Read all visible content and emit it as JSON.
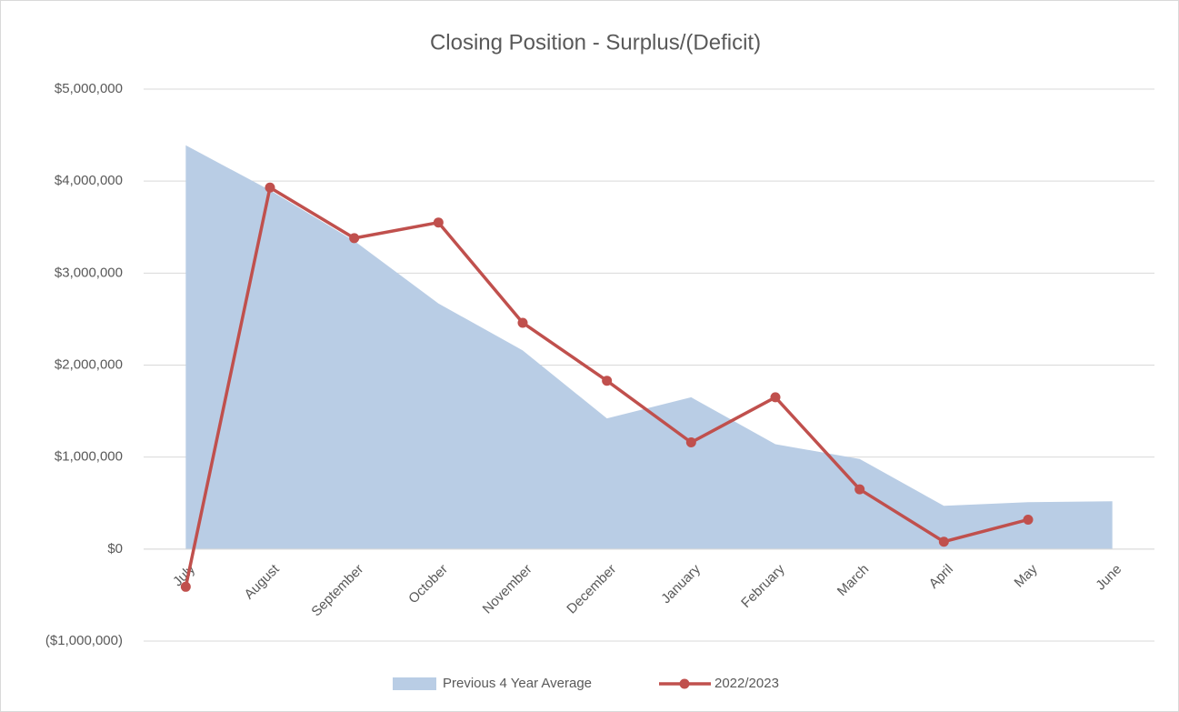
{
  "chart_data": {
    "type": "area_line",
    "title": "Closing Position - Surplus/(Deficit)",
    "categories": [
      "July",
      "August",
      "September",
      "October",
      "November",
      "December",
      "January",
      "February",
      "March",
      "April",
      "May",
      "June"
    ],
    "series": [
      {
        "name": "Previous 4 Year Average",
        "type": "area",
        "color": "#b9cde5",
        "values": [
          4390000,
          3900000,
          3350000,
          2670000,
          2160000,
          1420000,
          1650000,
          1140000,
          980000,
          470000,
          510000,
          520000
        ]
      },
      {
        "name": "2022/2023",
        "type": "line",
        "color": "#c0504d",
        "values": [
          -410000,
          3930000,
          3380000,
          3550000,
          2460000,
          1830000,
          1160000,
          1650000,
          650000,
          80000,
          320000,
          null
        ]
      }
    ],
    "ylim": [
      -1000000,
      5000000
    ],
    "yticks": [
      {
        "value": -1000000,
        "label": "($1,000,000)"
      },
      {
        "value": 0,
        "label": "$0"
      },
      {
        "value": 1000000,
        "label": "$1,000,000"
      },
      {
        "value": 2000000,
        "label": "$2,000,000"
      },
      {
        "value": 3000000,
        "label": "$3,000,000"
      },
      {
        "value": 4000000,
        "label": "$4,000,000"
      },
      {
        "value": 5000000,
        "label": "$5,000,000"
      }
    ],
    "grid": true,
    "legend": "bottom"
  }
}
